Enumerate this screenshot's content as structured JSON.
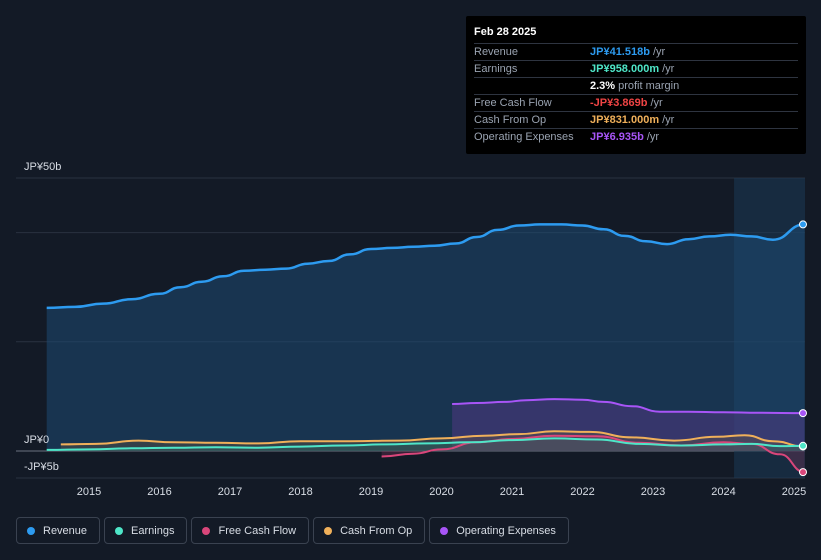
{
  "tooltip": {
    "date": "Feb 28 2025",
    "rows": [
      {
        "label": "Revenue",
        "value": "JP¥41.518b",
        "unit": "/yr",
        "color": "#2d9bf0"
      },
      {
        "label": "Earnings",
        "value": "JP¥958.000m",
        "unit": "/yr",
        "color": "#4ee6c8"
      },
      {
        "label": "",
        "value": "2.3%",
        "unit": "profit margin",
        "color": "#ffffff"
      },
      {
        "label": "Free Cash Flow",
        "value": "-JP¥3.869b",
        "unit": "/yr",
        "color": "#ef4444"
      },
      {
        "label": "Cash From Op",
        "value": "JP¥831.000m",
        "unit": "/yr",
        "color": "#f0b05a"
      },
      {
        "label": "Operating Expenses",
        "value": "JP¥6.935b",
        "unit": "/yr",
        "color": "#a855f7"
      }
    ]
  },
  "chart_data": {
    "type": "area",
    "ylabel_top": "JP¥50b",
    "ylabel_zero": "JP¥0",
    "ylabel_bottom": "-JP¥5b",
    "ylim": [
      -5,
      50
    ],
    "x_ticks": [
      "2015",
      "2016",
      "2017",
      "2018",
      "2019",
      "2020",
      "2021",
      "2022",
      "2023",
      "2024",
      "2025"
    ],
    "series": [
      {
        "name": "Revenue",
        "color": "#2d9bf0",
        "points": [
          [
            2014.4,
            26.2
          ],
          [
            2014.8,
            26.4
          ],
          [
            2015.2,
            27.0
          ],
          [
            2015.6,
            27.8
          ],
          [
            2016.0,
            28.8
          ],
          [
            2016.3,
            30.0
          ],
          [
            2016.6,
            31.0
          ],
          [
            2016.9,
            32.0
          ],
          [
            2017.2,
            33.0
          ],
          [
            2017.5,
            33.2
          ],
          [
            2017.8,
            33.4
          ],
          [
            2018.1,
            34.3
          ],
          [
            2018.4,
            34.8
          ],
          [
            2018.7,
            36.0
          ],
          [
            2019.0,
            37.0
          ],
          [
            2019.3,
            37.2
          ],
          [
            2019.6,
            37.4
          ],
          [
            2019.9,
            37.6
          ],
          [
            2020.2,
            38.0
          ],
          [
            2020.5,
            39.2
          ],
          [
            2020.8,
            40.5
          ],
          [
            2021.1,
            41.3
          ],
          [
            2021.4,
            41.5
          ],
          [
            2021.7,
            41.5
          ],
          [
            2022.0,
            41.3
          ],
          [
            2022.3,
            40.6
          ],
          [
            2022.6,
            39.4
          ],
          [
            2022.9,
            38.4
          ],
          [
            2023.2,
            37.9
          ],
          [
            2023.5,
            38.8
          ],
          [
            2023.8,
            39.3
          ],
          [
            2024.1,
            39.6
          ],
          [
            2024.4,
            39.3
          ],
          [
            2024.7,
            38.7
          ],
          [
            2025.15,
            41.5
          ]
        ]
      },
      {
        "name": "Earnings",
        "color": "#4ee6c8",
        "points": [
          [
            2014.4,
            0.2
          ],
          [
            2015.0,
            0.3
          ],
          [
            2015.6,
            0.5
          ],
          [
            2016.2,
            0.6
          ],
          [
            2016.8,
            0.7
          ],
          [
            2017.4,
            0.6
          ],
          [
            2018.0,
            0.8
          ],
          [
            2018.6,
            1.0
          ],
          [
            2019.2,
            1.2
          ],
          [
            2019.8,
            1.4
          ],
          [
            2020.4,
            1.6
          ],
          [
            2021.0,
            2.0
          ],
          [
            2021.6,
            2.3
          ],
          [
            2022.2,
            2.1
          ],
          [
            2022.8,
            1.3
          ],
          [
            2023.4,
            1.0
          ],
          [
            2024.0,
            1.2
          ],
          [
            2024.4,
            1.3
          ],
          [
            2024.8,
            0.9
          ],
          [
            2025.15,
            0.958
          ]
        ]
      },
      {
        "name": "Free Cash Flow",
        "color": "#d9467a",
        "points": [
          [
            2019.15,
            -1.0
          ],
          [
            2019.6,
            -0.5
          ],
          [
            2020.0,
            0.3
          ],
          [
            2020.5,
            1.6
          ],
          [
            2021.0,
            2.2
          ],
          [
            2021.6,
            2.8
          ],
          [
            2022.2,
            2.7
          ],
          [
            2022.8,
            1.5
          ],
          [
            2023.4,
            1.0
          ],
          [
            2024.0,
            1.6
          ],
          [
            2024.4,
            1.3
          ],
          [
            2024.8,
            -0.6
          ],
          [
            2025.15,
            -3.869
          ]
        ]
      },
      {
        "name": "Cash From Op",
        "color": "#f0b05a",
        "points": [
          [
            2014.6,
            1.2
          ],
          [
            2015.1,
            1.3
          ],
          [
            2015.7,
            1.9
          ],
          [
            2016.2,
            1.6
          ],
          [
            2016.8,
            1.5
          ],
          [
            2017.4,
            1.4
          ],
          [
            2018.0,
            1.8
          ],
          [
            2018.7,
            1.8
          ],
          [
            2019.4,
            1.9
          ],
          [
            2020.0,
            2.3
          ],
          [
            2020.6,
            2.8
          ],
          [
            2021.1,
            3.1
          ],
          [
            2021.6,
            3.6
          ],
          [
            2022.1,
            3.5
          ],
          [
            2022.7,
            2.5
          ],
          [
            2023.3,
            1.9
          ],
          [
            2023.9,
            2.6
          ],
          [
            2024.3,
            2.9
          ],
          [
            2024.7,
            1.8
          ],
          [
            2025.15,
            0.831
          ]
        ]
      },
      {
        "name": "Operating Expenses",
        "color": "#a855f7",
        "points": [
          [
            2020.15,
            8.6
          ],
          [
            2020.5,
            8.8
          ],
          [
            2020.9,
            9.0
          ],
          [
            2021.2,
            9.3
          ],
          [
            2021.6,
            9.5
          ],
          [
            2022.0,
            9.4
          ],
          [
            2022.3,
            9.0
          ],
          [
            2022.7,
            8.2
          ],
          [
            2023.1,
            7.2
          ],
          [
            2023.5,
            7.2
          ],
          [
            2024.0,
            7.1
          ],
          [
            2024.5,
            7.0
          ],
          [
            2025.15,
            6.935
          ]
        ]
      }
    ],
    "forecast_start": 2024.15
  },
  "legend": [
    {
      "label": "Revenue",
      "color": "#2d9bf0"
    },
    {
      "label": "Earnings",
      "color": "#4ee6c8"
    },
    {
      "label": "Free Cash Flow",
      "color": "#d9467a"
    },
    {
      "label": "Cash From Op",
      "color": "#f0b05a"
    },
    {
      "label": "Operating Expenses",
      "color": "#a855f7"
    }
  ]
}
